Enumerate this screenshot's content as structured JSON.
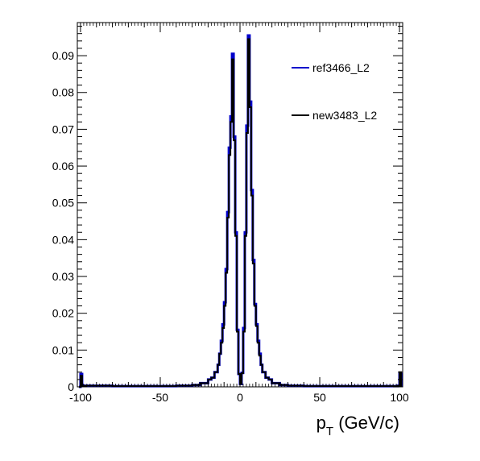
{
  "chart_data": {
    "type": "line",
    "title": "",
    "xlabel": {
      "main": "p",
      "sub": "T",
      "unit": " (GeV/c)"
    },
    "ylabel": "",
    "xlim": [
      -102,
      102
    ],
    "ylim": [
      0,
      0.099
    ],
    "x_ticks": [
      -100,
      -50,
      0,
      50,
      100
    ],
    "x_tick_labels": [
      "-100",
      "-50",
      "0",
      "50",
      "100"
    ],
    "y_ticks": [
      0,
      0.01,
      0.02,
      0.03,
      0.04,
      0.05,
      0.06,
      0.07,
      0.08,
      0.09
    ],
    "y_tick_labels": [
      "0",
      "0.01",
      "0.02",
      "0.03",
      "0.04",
      "0.05",
      "0.06",
      "0.07",
      "0.08",
      "0.09"
    ],
    "grid": false,
    "legend_position": "top-right",
    "series": [
      {
        "name": "ref3466_L2",
        "color": "#0000cc",
        "x": [
          -101,
          -100,
          -99,
          -80,
          -60,
          -40,
          -30,
          -25,
          -20,
          -18,
          -16,
          -14,
          -13,
          -12,
          -11,
          -10,
          -9,
          -8,
          -7,
          -6,
          -5,
          -4,
          -3,
          -2,
          -1,
          0,
          1,
          2,
          3,
          4,
          5,
          6,
          7,
          8,
          9,
          10,
          11,
          12,
          13,
          14,
          16,
          18,
          20,
          25,
          30,
          40,
          60,
          80,
          99,
          100,
          101
        ],
        "y": [
          0,
          0.0035,
          0.0003,
          0.0002,
          0.0002,
          0.0003,
          0.0005,
          0.001,
          0.002,
          0.0025,
          0.004,
          0.006,
          0.009,
          0.0125,
          0.017,
          0.023,
          0.032,
          0.0475,
          0.065,
          0.0735,
          0.0905,
          0.068,
          0.042,
          0.0155,
          0.0035,
          0.0008,
          0.0038,
          0.016,
          0.042,
          0.071,
          0.0955,
          0.0775,
          0.0535,
          0.0345,
          0.0225,
          0.017,
          0.0125,
          0.009,
          0.006,
          0.004,
          0.0025,
          0.002,
          0.001,
          0.0005,
          0.0003,
          0.0002,
          0.0002,
          0.0002,
          0.0003,
          0.0035,
          0
        ]
      },
      {
        "name": "new3483_L2",
        "color": "#000000",
        "x": [
          -101,
          -100,
          -99,
          -80,
          -60,
          -40,
          -30,
          -25,
          -20,
          -18,
          -16,
          -14,
          -13,
          -12,
          -11,
          -10,
          -9,
          -8,
          -7,
          -6,
          -5,
          -4,
          -3,
          -2,
          -1,
          0,
          1,
          2,
          3,
          4,
          5,
          6,
          7,
          8,
          9,
          10,
          11,
          12,
          13,
          14,
          16,
          18,
          20,
          25,
          30,
          40,
          60,
          80,
          99,
          100,
          101
        ],
        "y": [
          0,
          0.003,
          0.0003,
          0.0002,
          0.0002,
          0.0003,
          0.0005,
          0.001,
          0.002,
          0.0025,
          0.004,
          0.006,
          0.009,
          0.012,
          0.016,
          0.022,
          0.031,
          0.046,
          0.063,
          0.072,
          0.089,
          0.067,
          0.041,
          0.015,
          0.0035,
          0.0008,
          0.0037,
          0.015,
          0.041,
          0.069,
          0.0945,
          0.076,
          0.052,
          0.0335,
          0.022,
          0.0165,
          0.012,
          0.0085,
          0.006,
          0.004,
          0.0025,
          0.002,
          0.001,
          0.0005,
          0.0003,
          0.0002,
          0.0002,
          0.0002,
          0.0003,
          0.004,
          0
        ]
      }
    ]
  }
}
